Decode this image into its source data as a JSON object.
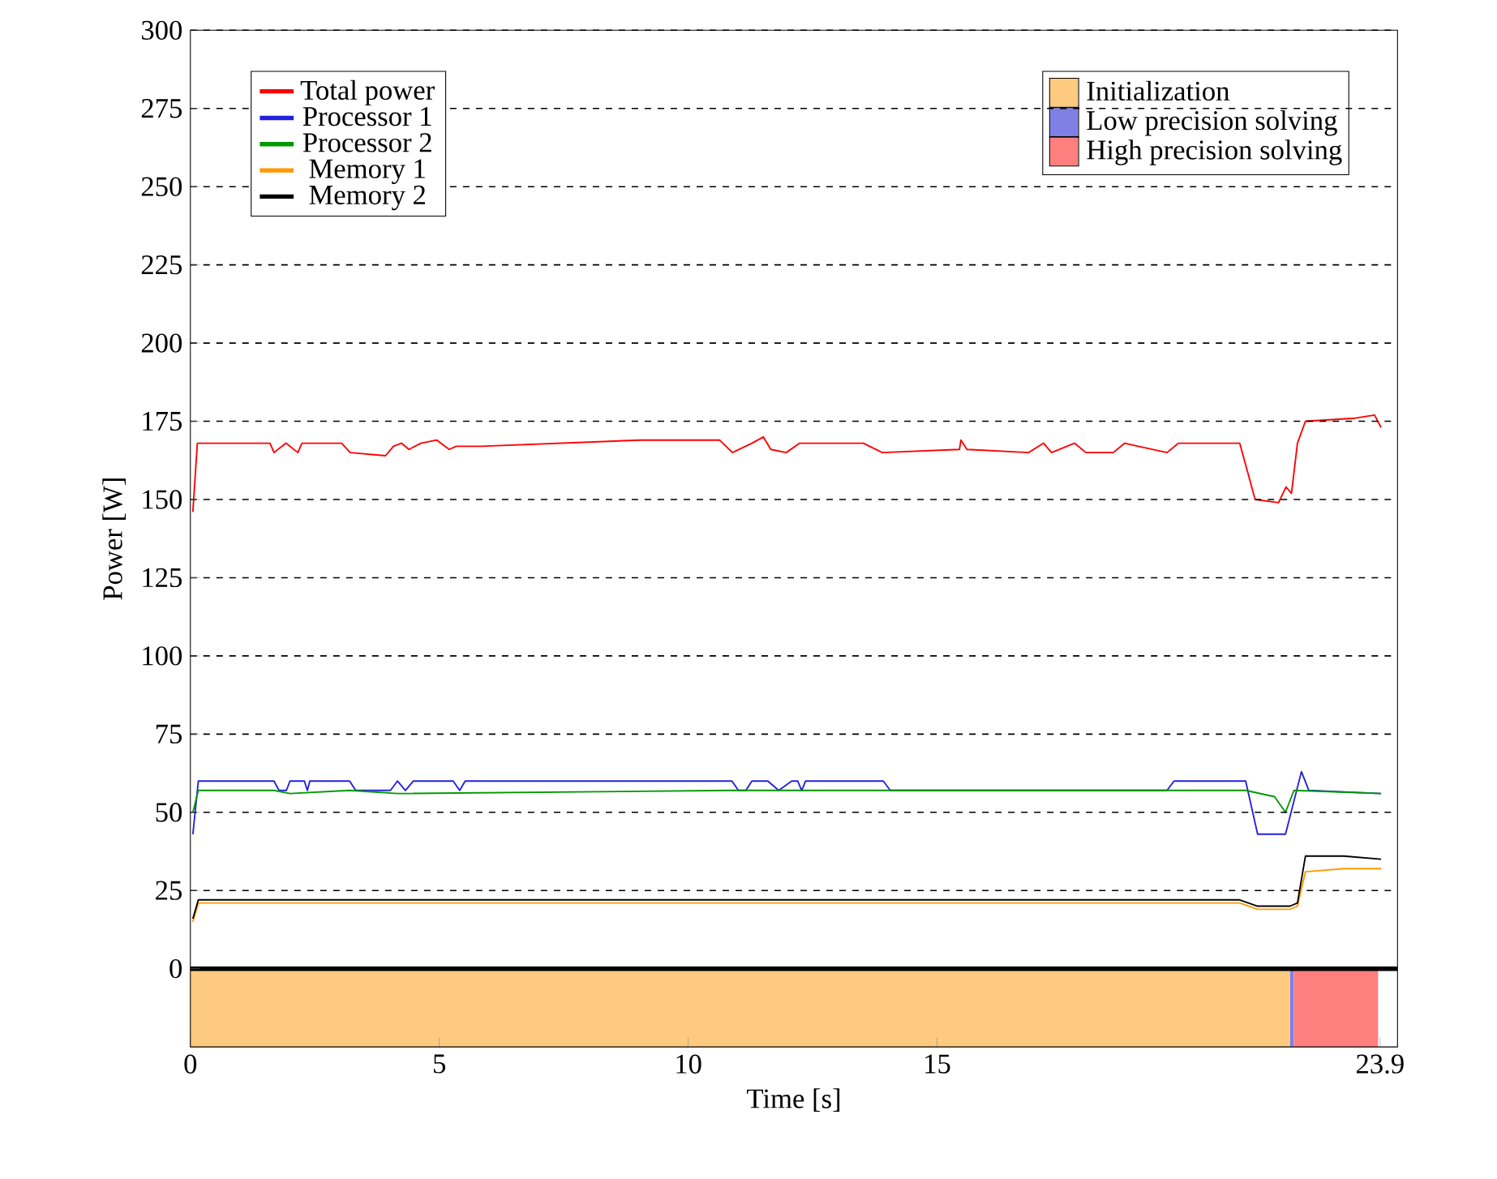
{
  "chart_data": {
    "type": "line",
    "xlabel": "Time [s]",
    "ylabel": "Power [W]",
    "xlim": [
      0,
      24.25
    ],
    "ylim": [
      -25,
      300
    ],
    "xticks": [
      0,
      5,
      10,
      15,
      23.9
    ],
    "yticks": [
      0,
      25,
      50,
      75,
      100,
      125,
      150,
      175,
      200,
      225,
      250,
      275,
      300
    ],
    "grid": "y",
    "legend": "top left",
    "marker": "none",
    "line_style": "solid",
    "ref_lines": [
      {
        "axis": "y",
        "value": 0,
        "color": "#000000"
      }
    ],
    "bands": [
      {
        "axis": "x",
        "from": 0,
        "to": 22.09,
        "label": "Initialization",
        "color": "#fdca80"
      },
      {
        "axis": "x",
        "from": 22.09,
        "to": 22.17,
        "label": "Low precision solving",
        "color": "#7f7fe6"
      },
      {
        "axis": "x",
        "from": 22.17,
        "to": 23.86,
        "label": "High precision solving",
        "color": "#ff7f7f"
      }
    ],
    "series": [
      {
        "name": "Total power",
        "color": "#ff0000",
        "x": [
          0.05,
          0.14,
          1.6,
          1.68,
          1.92,
          2.16,
          2.24,
          3.04,
          3.21,
          3.92,
          4.08,
          4.24,
          4.39,
          4.63,
          4.95,
          5.2,
          5.34,
          5.84,
          9.04,
          10.63,
          10.89,
          11.28,
          11.51,
          11.66,
          11.97,
          12.24,
          13.52,
          13.9,
          15.45,
          15.48,
          15.6,
          16.84,
          17.14,
          17.3,
          17.76,
          17.99,
          18.54,
          18.77,
          19.04,
          19.62,
          19.85,
          21.08,
          21.39,
          21.86,
          22.01,
          22.12,
          22.24,
          22.4,
          23.4,
          23.79,
          23.92
        ],
        "values": [
          146,
          168,
          168,
          165,
          168,
          165,
          168,
          168,
          165,
          164,
          167,
          168,
          166,
          168,
          169,
          166,
          167,
          167,
          169,
          169,
          165,
          168,
          170,
          166,
          165,
          168,
          168,
          165,
          166,
          169,
          166,
          165,
          168,
          165,
          168,
          165,
          165,
          168,
          167,
          165,
          168,
          168,
          150,
          149,
          154,
          152,
          168,
          175,
          176,
          177,
          173
        ]
      },
      {
        "name": "Processor 1",
        "color": "#2222dd",
        "x": [
          0.05,
          0.16,
          1.68,
          1.78,
          1.93,
          2.0,
          2.29,
          2.35,
          2.4,
          3.2,
          3.32,
          4.02,
          4.16,
          4.32,
          4.48,
          5.28,
          5.41,
          5.52,
          10.88,
          11.01,
          11.16,
          11.28,
          11.6,
          11.82,
          12.08,
          12.2,
          12.28,
          12.36,
          13.92,
          14.06,
          19.62,
          19.76,
          21.2,
          21.44,
          22.0,
          22.32,
          22.47,
          23.92
        ],
        "values": [
          43,
          60,
          60,
          57,
          57,
          60,
          60,
          57,
          60,
          60,
          57,
          57,
          60,
          57,
          60,
          60,
          57,
          60,
          60,
          57,
          57,
          60,
          60,
          57,
          60,
          60,
          57,
          60,
          60,
          57,
          57,
          60,
          60,
          43,
          43,
          63,
          57,
          56
        ]
      },
      {
        "name": "Processor 2",
        "color": "#009900",
        "x": [
          0.05,
          0.16,
          1.68,
          2.0,
          3.2,
          4.16,
          10.88,
          13.92,
          21.2,
          21.78,
          22.0,
          22.17,
          23.92
        ],
        "values": [
          50,
          57,
          57,
          56,
          57,
          56,
          57,
          57,
          57,
          55,
          50,
          57,
          56
        ]
      },
      {
        "name": "Memory 1",
        "color": "#ff9900",
        "x": [
          0.05,
          0.16,
          3.86,
          7.72,
          11.58,
          15.45,
          21.08,
          21.44,
          22.09,
          22.24,
          22.4,
          23.17,
          23.92
        ],
        "values": [
          15,
          21,
          21,
          21,
          21,
          21,
          21,
          19,
          19,
          20,
          31,
          32,
          32
        ]
      },
      {
        "name": "Memory 2",
        "color": "#000000",
        "x": [
          0.05,
          0.16,
          3.86,
          7.72,
          11.58,
          15.45,
          21.08,
          21.44,
          22.09,
          22.24,
          22.4,
          23.17,
          23.92
        ],
        "values": [
          16,
          22,
          22,
          22,
          22,
          22,
          22,
          20,
          20,
          21,
          36,
          36,
          35
        ]
      }
    ]
  }
}
